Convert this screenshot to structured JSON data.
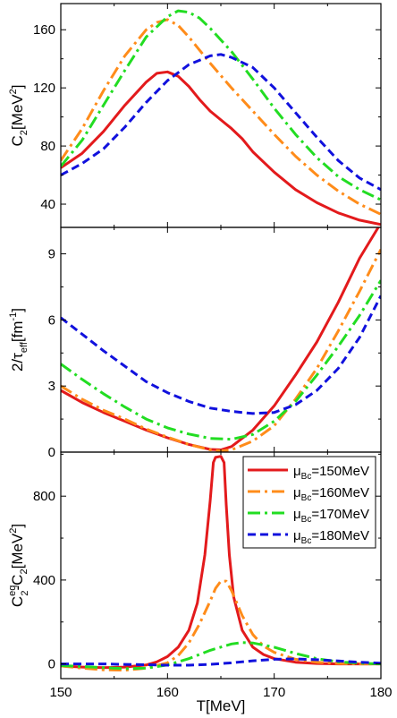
{
  "chart_data": [
    {
      "type": "line",
      "ylabel_main": "C",
      "ylabel_sub": "2",
      "ylabel_rest": "[MeV",
      "ylabel_sup": "2",
      "ylabel_end": "]",
      "ylim": [
        24,
        178
      ],
      "yticks": [
        40,
        80,
        120,
        160
      ],
      "xlim": [
        150,
        180
      ],
      "series": [
        {
          "color": "#e31a1c",
          "dash": "solid",
          "x": [
            150,
            152,
            154,
            156,
            158,
            159,
            160,
            161,
            162,
            163,
            164,
            165,
            166,
            167,
            168,
            170,
            172,
            174,
            176,
            178,
            180
          ],
          "y": [
            65,
            75,
            90,
            108,
            124,
            130,
            131,
            128,
            121,
            112,
            104,
            98,
            92,
            85,
            76,
            62,
            50,
            41,
            34,
            29,
            26
          ]
        },
        {
          "color": "#ff8c1a",
          "dash": "dashdot",
          "x": [
            150,
            152,
            154,
            156,
            158,
            159,
            160,
            161,
            162,
            163,
            164,
            166,
            168,
            170,
            172,
            174,
            176,
            178,
            180
          ],
          "y": [
            70,
            92,
            118,
            142,
            160,
            165,
            167,
            163,
            155,
            146,
            137,
            120,
            104,
            88,
            73,
            60,
            49,
            40,
            33
          ]
        },
        {
          "color": "#22dd22",
          "dash": "dashdot",
          "x": [
            150,
            152,
            154,
            156,
            158,
            160,
            161,
            162,
            163,
            164,
            166,
            168,
            170,
            172,
            174,
            176,
            178,
            180
          ],
          "y": [
            66,
            84,
            108,
            132,
            155,
            169,
            173,
            172,
            168,
            161,
            145,
            126,
            106,
            88,
            72,
            59,
            50,
            43
          ]
        },
        {
          "color": "#1111dd",
          "dash": "dash",
          "x": [
            150,
            152,
            154,
            156,
            158,
            160,
            162,
            164,
            165,
            166,
            168,
            170,
            172,
            174,
            176,
            178,
            180
          ],
          "y": [
            60,
            68,
            78,
            93,
            110,
            125,
            136,
            142,
            143,
            141,
            134,
            120,
            103,
            86,
            70,
            58,
            50
          ]
        }
      ]
    },
    {
      "type": "line",
      "ylabel_main": "2/τ",
      "ylabel_sub": "eff",
      "ylabel_rest": "[fm",
      "ylabel_sup": "-1",
      "ylabel_end": "]",
      "ylim": [
        0,
        10.2
      ],
      "yticks": [
        0,
        3,
        6,
        9
      ],
      "xlim": [
        150,
        180
      ],
      "series": [
        {
          "color": "#e31a1c",
          "dash": "solid",
          "x": [
            150,
            152,
            154,
            156,
            158,
            160,
            162,
            164,
            165,
            166,
            168,
            170,
            172,
            174,
            176,
            178,
            180
          ],
          "y": [
            2.8,
            2.25,
            1.8,
            1.4,
            1.0,
            0.65,
            0.35,
            0.12,
            0.1,
            0.25,
            1.0,
            2.1,
            3.5,
            5.0,
            6.8,
            8.8,
            10.4
          ]
        },
        {
          "color": "#ff8c1a",
          "dash": "dashdot",
          "x": [
            150,
            152,
            154,
            156,
            158,
            160,
            162,
            164,
            165,
            166,
            168,
            170,
            172,
            174,
            176,
            178,
            180
          ],
          "y": [
            3.0,
            2.4,
            1.9,
            1.5,
            1.05,
            0.68,
            0.35,
            0.1,
            0.05,
            0.1,
            0.5,
            1.2,
            2.4,
            3.8,
            5.5,
            7.3,
            9.2
          ]
        },
        {
          "color": "#22dd22",
          "dash": "dashdot",
          "x": [
            150,
            152,
            154,
            156,
            158,
            160,
            162,
            164,
            166,
            168,
            170,
            172,
            174,
            176,
            178,
            180
          ],
          "y": [
            4.0,
            3.3,
            2.65,
            2.05,
            1.5,
            1.1,
            0.82,
            0.62,
            0.58,
            0.8,
            1.4,
            2.3,
            3.5,
            4.8,
            6.2,
            7.8
          ]
        },
        {
          "color": "#1111dd",
          "dash": "dash",
          "x": [
            150,
            152,
            154,
            156,
            158,
            160,
            162,
            164,
            166,
            168,
            170,
            172,
            174,
            176,
            178,
            180
          ],
          "y": [
            6.1,
            5.35,
            4.6,
            3.9,
            3.2,
            2.7,
            2.3,
            2.0,
            1.85,
            1.75,
            1.8,
            2.15,
            2.8,
            3.8,
            5.2,
            7.1
          ]
        }
      ]
    },
    {
      "type": "line",
      "ylabel_main": "C",
      "ylabel_sup2": "eq",
      "ylabel_sub2": "2",
      "ylabel_mid": "-C",
      "ylabel_sub": "2",
      "ylabel_rest": "[MeV",
      "ylabel_sup": "2",
      "ylabel_end": "]",
      "ylim": [
        -70,
        1010
      ],
      "yticks": [
        0,
        400,
        800
      ],
      "xlim": [
        150,
        180
      ],
      "xticks": [
        150,
        160,
        170,
        180
      ],
      "xlabel": "T[MeV]",
      "legend_position": "top-right",
      "series": [
        {
          "name": "μ",
          "name_sub": "Bc",
          "name_rest": "=150MeV",
          "color": "#e31a1c",
          "dash": "solid",
          "x": [
            150,
            152,
            154,
            156,
            158,
            159,
            160,
            161,
            162,
            162.8,
            163.5,
            164,
            164.3,
            164.5,
            165,
            165.3,
            165.5,
            165.8,
            166.2,
            167,
            168,
            169,
            170,
            172,
            174,
            176,
            178,
            180
          ],
          "y": [
            -10,
            -15,
            -18,
            -15,
            -5,
            10,
            35,
            80,
            160,
            290,
            520,
            780,
            960,
            985,
            990,
            960,
            760,
            520,
            320,
            160,
            80,
            45,
            25,
            8,
            2,
            0,
            0,
            0
          ]
        },
        {
          "name": "μ",
          "name_sub": "Bc",
          "name_rest": "=160MeV",
          "color": "#ff8c1a",
          "dash": "dashdot",
          "x": [
            150,
            152,
            154,
            156,
            158,
            160,
            161,
            162,
            163,
            164,
            164.5,
            165,
            165.5,
            166,
            167,
            168,
            169,
            170,
            172,
            174,
            176,
            178,
            180
          ],
          "y": [
            -10,
            -20,
            -28,
            -30,
            -20,
            5,
            40,
            100,
            190,
            300,
            360,
            395,
            395,
            350,
            230,
            140,
            85,
            55,
            22,
            8,
            2,
            0,
            0
          ]
        },
        {
          "name": "μ",
          "name_sub": "Bc",
          "name_rest": "=170MeV",
          "color": "#22dd22",
          "dash": "dashdot",
          "x": [
            150,
            152,
            154,
            156,
            158,
            160,
            162,
            164,
            166,
            167,
            168,
            170,
            172,
            174,
            176,
            178,
            180
          ],
          "y": [
            -8,
            -12,
            -18,
            -22,
            -20,
            -5,
            25,
            65,
            95,
            102,
            100,
            80,
            50,
            25,
            10,
            4,
            0
          ]
        },
        {
          "name": "μ",
          "name_sub": "Bc",
          "name_rest": "=180MeV",
          "color": "#1111dd",
          "dash": "dash",
          "x": [
            150,
            152,
            154,
            156,
            158,
            160,
            162,
            164,
            166,
            168,
            170,
            172,
            174,
            176,
            178,
            180
          ],
          "y": [
            0,
            0,
            0,
            -2,
            -4,
            -6,
            -6,
            -2,
            5,
            15,
            22,
            24,
            20,
            14,
            8,
            4
          ]
        }
      ]
    }
  ]
}
